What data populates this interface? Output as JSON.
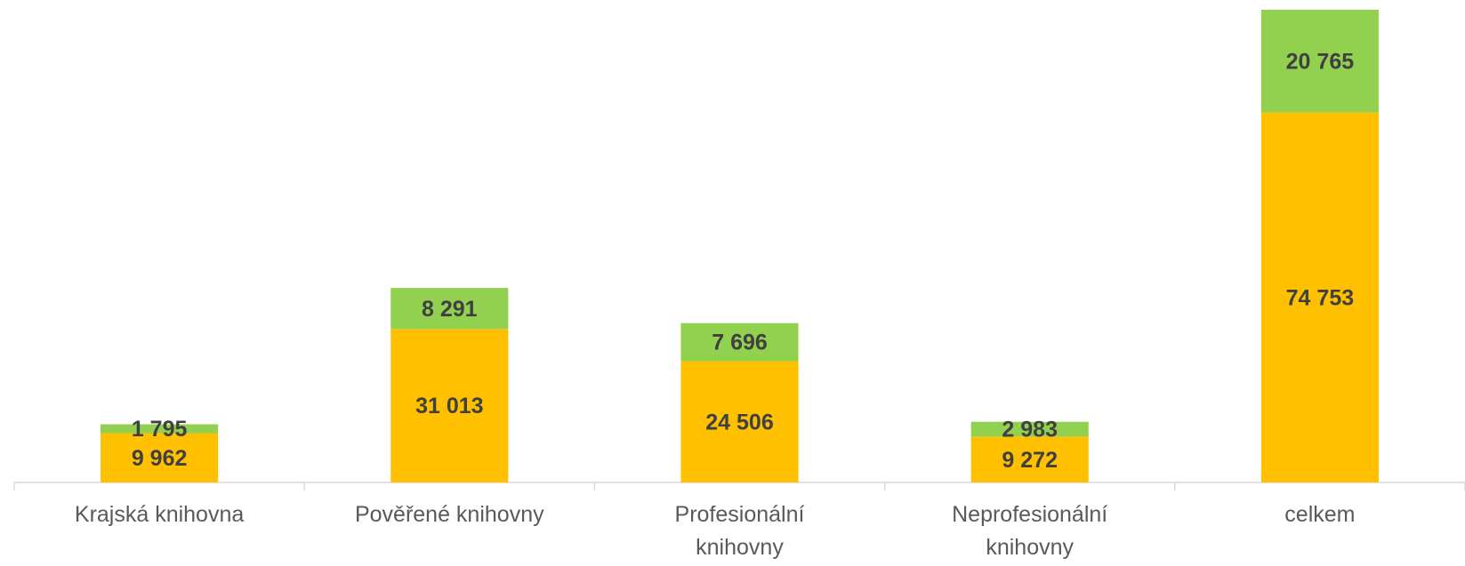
{
  "chart_data": {
    "type": "bar",
    "stacked": true,
    "categories": [
      "Krajská knihovna",
      "Pověřené knihovny",
      "Profesionální knihovny",
      "Neprofesionální knihovny",
      "celkem"
    ],
    "series": [
      {
        "color": "#FFC000",
        "values": [
          9962,
          31013,
          24506,
          9272,
          74753
        ],
        "value_labels": [
          "9 962",
          "31 013",
          "24 506",
          "9 272",
          "74 753"
        ]
      },
      {
        "color": "#92D050",
        "values": [
          1795,
          8291,
          7696,
          2983,
          20765
        ],
        "value_labels": [
          "1 795",
          "8 291",
          "7 696",
          "2 983",
          "20 765"
        ]
      }
    ]
  }
}
